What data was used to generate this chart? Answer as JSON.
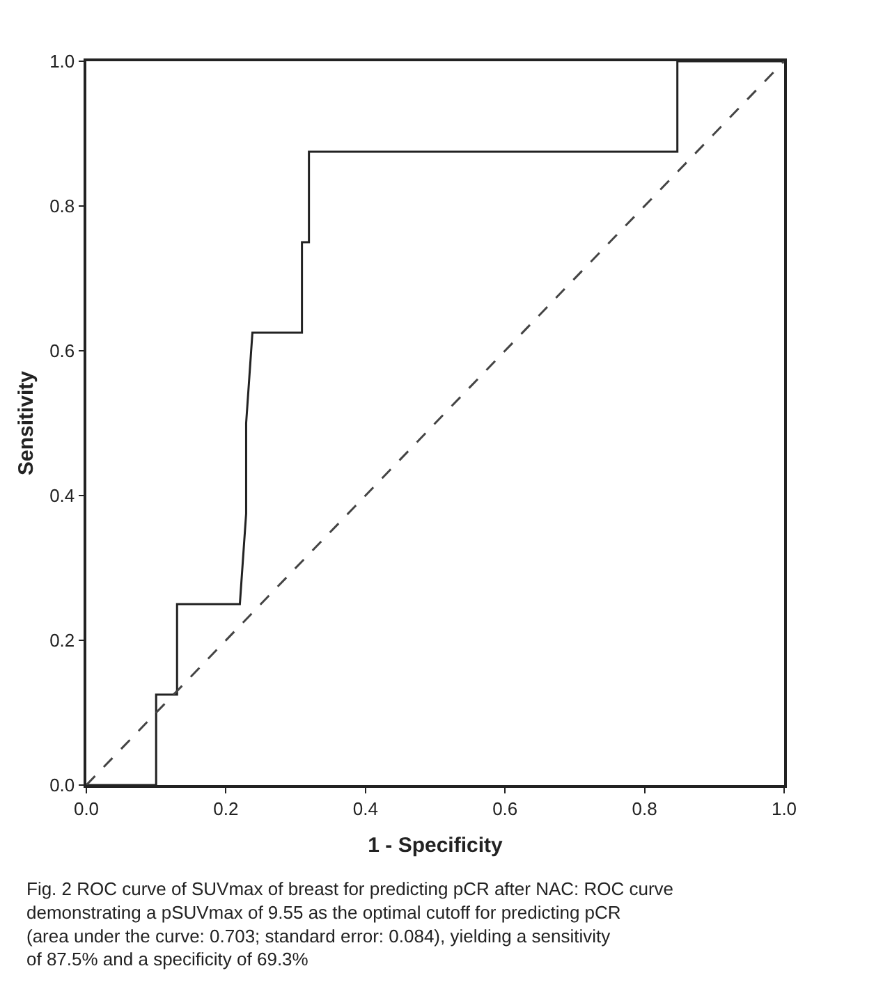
{
  "chart_data": {
    "type": "line",
    "xlabel": "1 - Specificity",
    "ylabel": "Sensitivity",
    "xlim": [
      0,
      1
    ],
    "ylim": [
      0,
      1
    ],
    "xticks": [
      {
        "value": 0,
        "label": "0.0"
      },
      {
        "value": 0.2,
        "label": "0.2"
      },
      {
        "value": 0.4,
        "label": "0.4"
      },
      {
        "value": 0.6,
        "label": "0.6"
      },
      {
        "value": 0.8,
        "label": "0.8"
      },
      {
        "value": 1,
        "label": "1.0"
      }
    ],
    "yticks": [
      {
        "value": 0,
        "label": "0.0"
      },
      {
        "value": 0.2,
        "label": "0.2"
      },
      {
        "value": 0.4,
        "label": "0.4"
      },
      {
        "value": 0.6,
        "label": "0.6"
      },
      {
        "value": 0.8,
        "label": "0.8"
      },
      {
        "value": 1,
        "label": "1.0"
      }
    ],
    "marker": "none",
    "series": [
      {
        "color": "#222222",
        "line_style": "solid",
        "x": [
          0,
          0.1,
          0.1,
          0.13,
          0.13,
          0.22,
          0.229,
          0.229,
          0.238,
          0.309,
          0.309,
          0.319,
          0.319,
          0.847,
          0.847,
          1
        ],
        "values": [
          0,
          0,
          0.125,
          0.125,
          0.25,
          0.25,
          0.375,
          0.5,
          0.625,
          0.625,
          0.75,
          0.75,
          0.875,
          0.875,
          1,
          1
        ]
      },
      {
        "color": "#444444",
        "line_style": "dashed",
        "x": [
          0,
          1
        ],
        "values": [
          0,
          1
        ]
      }
    ],
    "annotations": [
      "Fig. 2 ROC curve of SUVmax of breast for predicting pCR after NAC: ROC curve demonstrating a pSUVmax of 9.55 as the optimal cutoff for predicting pCR (area under the curve: 0.703; standard error: 0.084), yielding a sensitivity of 87.5% and a specificity of 69.3%"
    ]
  }
}
